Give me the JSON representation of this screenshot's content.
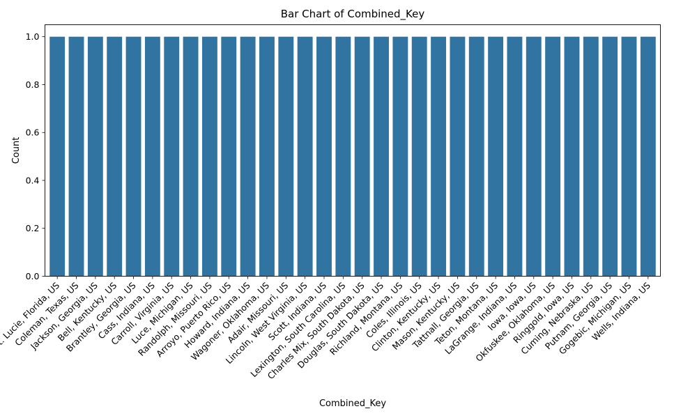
{
  "chart_data": {
    "type": "bar",
    "title": "Bar Chart of Combined_Key",
    "xlabel": "Combined_Key",
    "ylabel": "Count",
    "ylim": [
      0,
      1.05
    ],
    "yticks": [
      "0.0",
      "0.2",
      "0.4",
      "0.6",
      "0.8",
      "1.0"
    ],
    "grid": false,
    "bar_color": "#3274a1",
    "categories": [
      "St. Lucie, Florida, US",
      "Coleman, Texas, US",
      "Jackson, Georgia, US",
      "Bell, Kentucky, US",
      "Brantley, Georgia, US",
      "Cass, Indiana, US",
      "Carroll, Virginia, US",
      "Luce, Michigan, US",
      "Randolph, Missouri, US",
      "Arroyo, Puerto Rico, US",
      "Howard, Indiana, US",
      "Wagoner, Oklahoma, US",
      "Adair, Missouri, US",
      "Lincoln, West Virginia, US",
      "Scott, Indiana, US",
      "Lexington, South Carolina, US",
      "Charles Mix, South Dakota, US",
      "Douglas, South Dakota, US",
      "Richland, Montana, US",
      "Coles, Illinois, US",
      "Clinton, Kentucky, US",
      "Mason, Kentucky, US",
      "Tattnall, Georgia, US",
      "Teton, Montana, US",
      "LaGrange, Indiana, US",
      "Iowa, Iowa, US",
      "Okfuskee, Oklahoma, US",
      "Ringgold, Iowa, US",
      "Cuming, Nebraska, US",
      "Putnam, Georgia, US",
      "Gogebic, Michigan, US",
      "Wells, Indiana, US"
    ],
    "values": [
      1,
      1,
      1,
      1,
      1,
      1,
      1,
      1,
      1,
      1,
      1,
      1,
      1,
      1,
      1,
      1,
      1,
      1,
      1,
      1,
      1,
      1,
      1,
      1,
      1,
      1,
      1,
      1,
      1,
      1,
      1,
      1
    ]
  }
}
